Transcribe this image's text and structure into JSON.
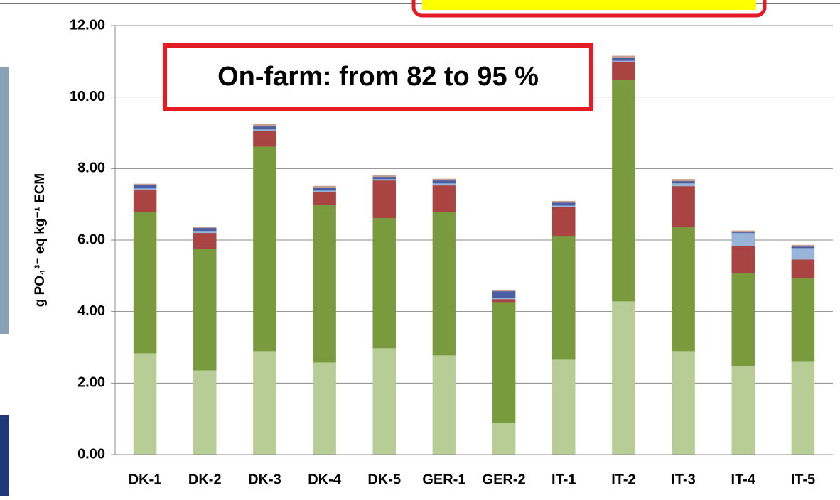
{
  "chart_data": {
    "type": "stacked_bar",
    "y_label": "g PO₄³⁻ eq kg⁻¹ ECM",
    "annotation": "On-farm: from 82 to 95 %",
    "categories": [
      "DK-1",
      "DK-2",
      "DK-3",
      "DK-4",
      "DK-5",
      "GER-1",
      "GER-2",
      "IT-1",
      "IT-2",
      "IT-3",
      "IT-4",
      "IT-5"
    ],
    "series": [
      {
        "color": "#b7cd95",
        "values": [
          2.84,
          2.36,
          2.9,
          2.58,
          2.98,
          2.78,
          0.89,
          2.66,
          4.29,
          2.9,
          2.48,
          2.62
        ]
      },
      {
        "color": "#7a9a3e",
        "values": [
          3.96,
          3.4,
          5.72,
          4.41,
          3.64,
          4.0,
          3.38,
          3.46,
          6.2,
          3.46,
          2.59,
          2.31
        ]
      },
      {
        "color": "#aa4443",
        "values": [
          0.6,
          0.44,
          0.44,
          0.36,
          1.05,
          0.75,
          0.08,
          0.81,
          0.5,
          1.15,
          0.77,
          0.53
        ]
      },
      {
        "color": "#98b5d9",
        "values": [
          0.05,
          0.06,
          0.04,
          0.04,
          0.04,
          0.06,
          0.04,
          0.04,
          0.03,
          0.08,
          0.36,
          0.32
        ]
      },
      {
        "color": "#4a5ea6",
        "values": [
          0.1,
          0.08,
          0.08,
          0.08,
          0.06,
          0.08,
          0.18,
          0.08,
          0.08,
          0.06,
          0.02,
          0.04
        ]
      },
      {
        "color": "#c6a08e",
        "values": [
          0.02,
          0.02,
          0.06,
          0.04,
          0.04,
          0.04,
          0.03,
          0.04,
          0.05,
          0.05,
          0.04,
          0.04
        ]
      }
    ],
    "ylim": [
      0,
      12
    ],
    "yticks": [
      {
        "value": 0,
        "label": "0.00"
      },
      {
        "value": 2,
        "label": "2.00"
      },
      {
        "value": 4,
        "label": "4.00"
      },
      {
        "value": 6,
        "label": "6.00"
      },
      {
        "value": 8,
        "label": "8.00"
      },
      {
        "value": 10,
        "label": "10.00"
      },
      {
        "value": 12,
        "label": "12.00"
      }
    ],
    "grid": true
  }
}
